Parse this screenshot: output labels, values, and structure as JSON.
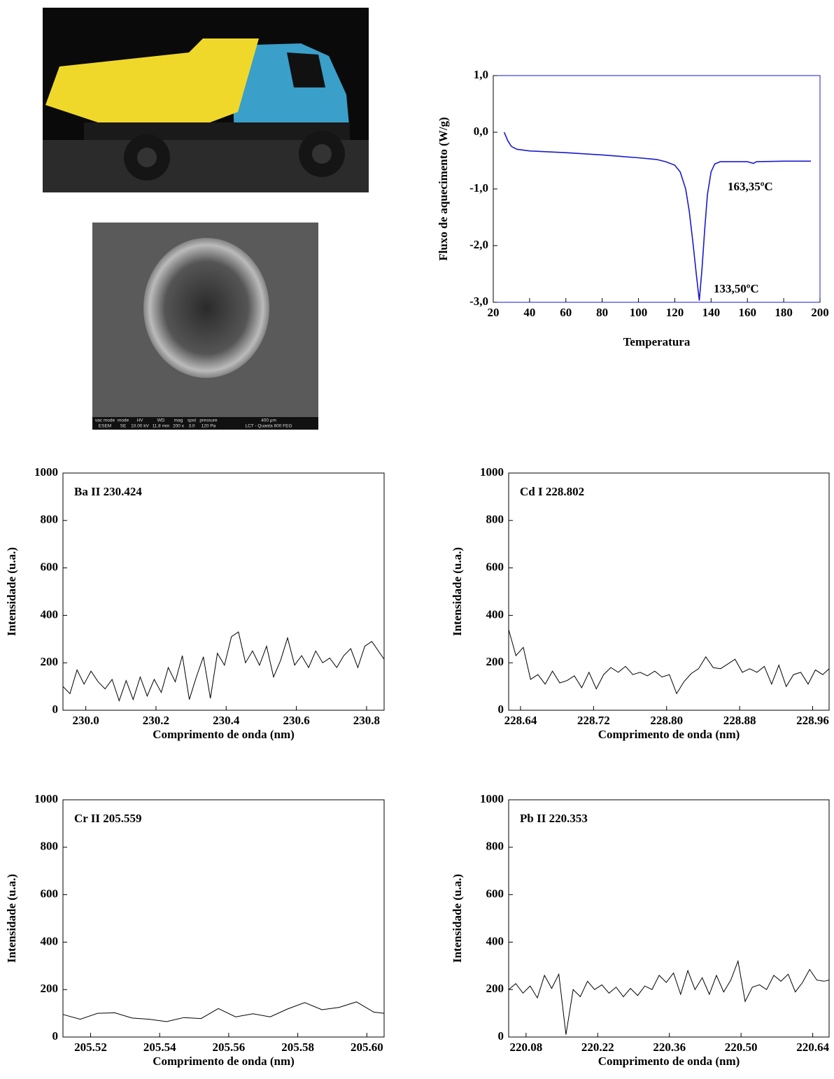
{
  "chart_data": [
    {
      "type": "line",
      "color": "#1a1acd",
      "xlabel": "Temperatura",
      "ylabel": "Fluxo de aquecimento (W/g)",
      "xlim": [
        20,
        200
      ],
      "ylim": [
        -3,
        1
      ],
      "xticks": [
        20,
        40,
        60,
        80,
        100,
        120,
        140,
        160,
        180,
        200
      ],
      "yticks": [
        {
          "value": -3,
          "label": "-3,0"
        },
        {
          "value": -2,
          "label": "-2,0"
        },
        {
          "value": -1,
          "label": "-1,0"
        },
        {
          "value": 0,
          "label": "0,0"
        },
        {
          "value": 1,
          "label": "1,0"
        }
      ],
      "annotations": [
        "163,35ºC",
        "133,50ºC"
      ],
      "x": [
        26,
        28,
        30,
        33,
        40,
        60,
        80,
        100,
        110,
        115,
        120,
        123,
        126,
        128,
        130,
        132,
        133.5,
        135,
        136.5,
        138,
        140,
        142,
        145,
        150,
        160,
        163.35,
        165,
        180,
        195
      ],
      "values": [
        0.0,
        -0.15,
        -0.25,
        -0.3,
        -0.33,
        -0.36,
        -0.4,
        -0.45,
        -0.48,
        -0.52,
        -0.58,
        -0.7,
        -1.0,
        -1.4,
        -1.95,
        -2.55,
        -2.97,
        -2.4,
        -1.7,
        -1.1,
        -0.7,
        -0.56,
        -0.52,
        -0.52,
        -0.52,
        -0.55,
        -0.52,
        -0.51,
        -0.51
      ]
    },
    {
      "type": "line",
      "color": "#000000",
      "annotation": "Ba II 230.424",
      "xlabel": "Comprimento de onda (nm)",
      "ylabel": "Intensidade (u.a.)",
      "xlim": [
        229.935,
        230.85
      ],
      "ylim": [
        0,
        1000
      ],
      "xticks": [
        {
          "value": 230,
          "label": "230.0"
        },
        230.2,
        230.4,
        230.6,
        230.8
      ],
      "yticks": [
        0,
        200,
        400,
        600,
        800,
        1000
      ],
      "x": [
        229.935,
        229.955,
        229.975,
        229.995,
        230.015,
        230.035,
        230.055,
        230.075,
        230.095,
        230.115,
        230.135,
        230.155,
        230.175,
        230.195,
        230.215,
        230.235,
        230.255,
        230.275,
        230.295,
        230.315,
        230.335,
        230.355,
        230.375,
        230.395,
        230.415,
        230.435,
        230.455,
        230.475,
        230.495,
        230.515,
        230.535,
        230.555,
        230.575,
        230.595,
        230.615,
        230.635,
        230.655,
        230.675,
        230.695,
        230.715,
        230.735,
        230.755,
        230.775,
        230.795,
        230.815,
        230.85
      ],
      "values": [
        100,
        70,
        170,
        110,
        165,
        120,
        90,
        130,
        40,
        125,
        45,
        140,
        60,
        130,
        75,
        180,
        120,
        230,
        45,
        140,
        225,
        50,
        240,
        190,
        310,
        330,
        200,
        250,
        190,
        270,
        140,
        210,
        305,
        190,
        230,
        180,
        250,
        200,
        220,
        180,
        230,
        260,
        180,
        270,
        290,
        215
      ]
    },
    {
      "type": "line",
      "color": "#000000",
      "annotation": "Cd I 228.802",
      "xlabel": "Comprimento de onda (nm)",
      "ylabel": "Intensidade (u.a.)",
      "xlim": [
        228.627,
        228.978
      ],
      "ylim": [
        0,
        1000
      ],
      "xticks": [
        228.64,
        228.72,
        {
          "value": 228.8,
          "label": "228.80"
        },
        228.88,
        228.96
      ],
      "yticks": [
        0,
        200,
        400,
        600,
        800,
        1000
      ],
      "x": [
        228.627,
        228.635,
        228.643,
        228.651,
        228.659,
        228.667,
        228.675,
        228.683,
        228.691,
        228.699,
        228.707,
        228.715,
        228.723,
        228.731,
        228.739,
        228.747,
        228.755,
        228.763,
        228.771,
        228.779,
        228.787,
        228.795,
        228.803,
        228.811,
        228.819,
        228.827,
        228.835,
        228.843,
        228.851,
        228.859,
        228.867,
        228.875,
        228.883,
        228.891,
        228.899,
        228.907,
        228.915,
        228.923,
        228.931,
        228.939,
        228.947,
        228.955,
        228.963,
        228.971,
        228.978
      ],
      "values": [
        340,
        230,
        265,
        130,
        150,
        110,
        165,
        115,
        125,
        145,
        95,
        160,
        90,
        150,
        180,
        160,
        185,
        150,
        160,
        145,
        165,
        140,
        150,
        70,
        120,
        155,
        175,
        225,
        180,
        175,
        195,
        215,
        160,
        175,
        160,
        185,
        110,
        190,
        100,
        150,
        160,
        110,
        170,
        150,
        175
      ]
    },
    {
      "type": "line",
      "color": "#000000",
      "annotation": "Cr II 205.559",
      "xlabel": "Comprimento de onda (nm)",
      "ylabel": "Intensidade (u.a.)",
      "xlim": [
        205.512,
        205.605
      ],
      "ylim": [
        0,
        1000
      ],
      "xticks": [
        205.52,
        205.54,
        205.56,
        205.58,
        {
          "value": 205.6,
          "label": "205.60"
        }
      ],
      "yticks": [
        0,
        200,
        400,
        600,
        800,
        1000
      ],
      "x": [
        205.512,
        205.517,
        205.522,
        205.527,
        205.532,
        205.537,
        205.542,
        205.547,
        205.552,
        205.557,
        205.562,
        205.567,
        205.572,
        205.577,
        205.582,
        205.587,
        205.592,
        205.597,
        205.602,
        205.605
      ],
      "values": [
        95,
        75,
        100,
        102,
        80,
        75,
        65,
        82,
        78,
        120,
        85,
        98,
        85,
        118,
        145,
        115,
        125,
        148,
        105,
        100
      ]
    },
    {
      "type": "line",
      "color": "#000000",
      "annotation": "Pb II 220.353",
      "xlabel": "Comprimento de onda (nm)",
      "ylabel": "Intensidade (u.a.)",
      "xlim": [
        220.046,
        220.672
      ],
      "ylim": [
        0,
        1000
      ],
      "xticks": [
        220.08,
        220.22,
        220.36,
        {
          "value": 220.5,
          "label": "220.50"
        },
        220.64
      ],
      "yticks": [
        0,
        200,
        400,
        600,
        800,
        1000
      ],
      "x": [
        220.046,
        220.06,
        220.074,
        220.088,
        220.102,
        220.116,
        220.13,
        220.144,
        220.158,
        220.172,
        220.186,
        220.2,
        220.214,
        220.228,
        220.242,
        220.256,
        220.27,
        220.284,
        220.298,
        220.312,
        220.326,
        220.34,
        220.354,
        220.368,
        220.382,
        220.396,
        220.41,
        220.424,
        220.438,
        220.452,
        220.466,
        220.48,
        220.494,
        220.508,
        220.522,
        220.536,
        220.55,
        220.564,
        220.578,
        220.592,
        220.606,
        220.62,
        220.634,
        220.648,
        220.662,
        220.672
      ],
      "values": [
        200,
        225,
        185,
        215,
        165,
        260,
        205,
        265,
        10,
        200,
        170,
        235,
        200,
        220,
        185,
        210,
        170,
        205,
        175,
        215,
        200,
        260,
        230,
        270,
        180,
        280,
        200,
        250,
        180,
        260,
        190,
        240,
        320,
        150,
        210,
        220,
        200,
        260,
        235,
        265,
        190,
        230,
        285,
        240,
        235,
        240
      ]
    }
  ],
  "sem": {
    "header": [
      "vac mode",
      "mode",
      "HV",
      "WD",
      "mag",
      "spot",
      "pressure"
    ],
    "values": [
      "ESEM",
      "SE",
      "10.00 kV",
      "11.8 mm",
      "200 x",
      "3.0",
      "120 Pa"
    ],
    "scale": "400 μm",
    "instrument": "LCT - Quanta 600 FEG"
  }
}
